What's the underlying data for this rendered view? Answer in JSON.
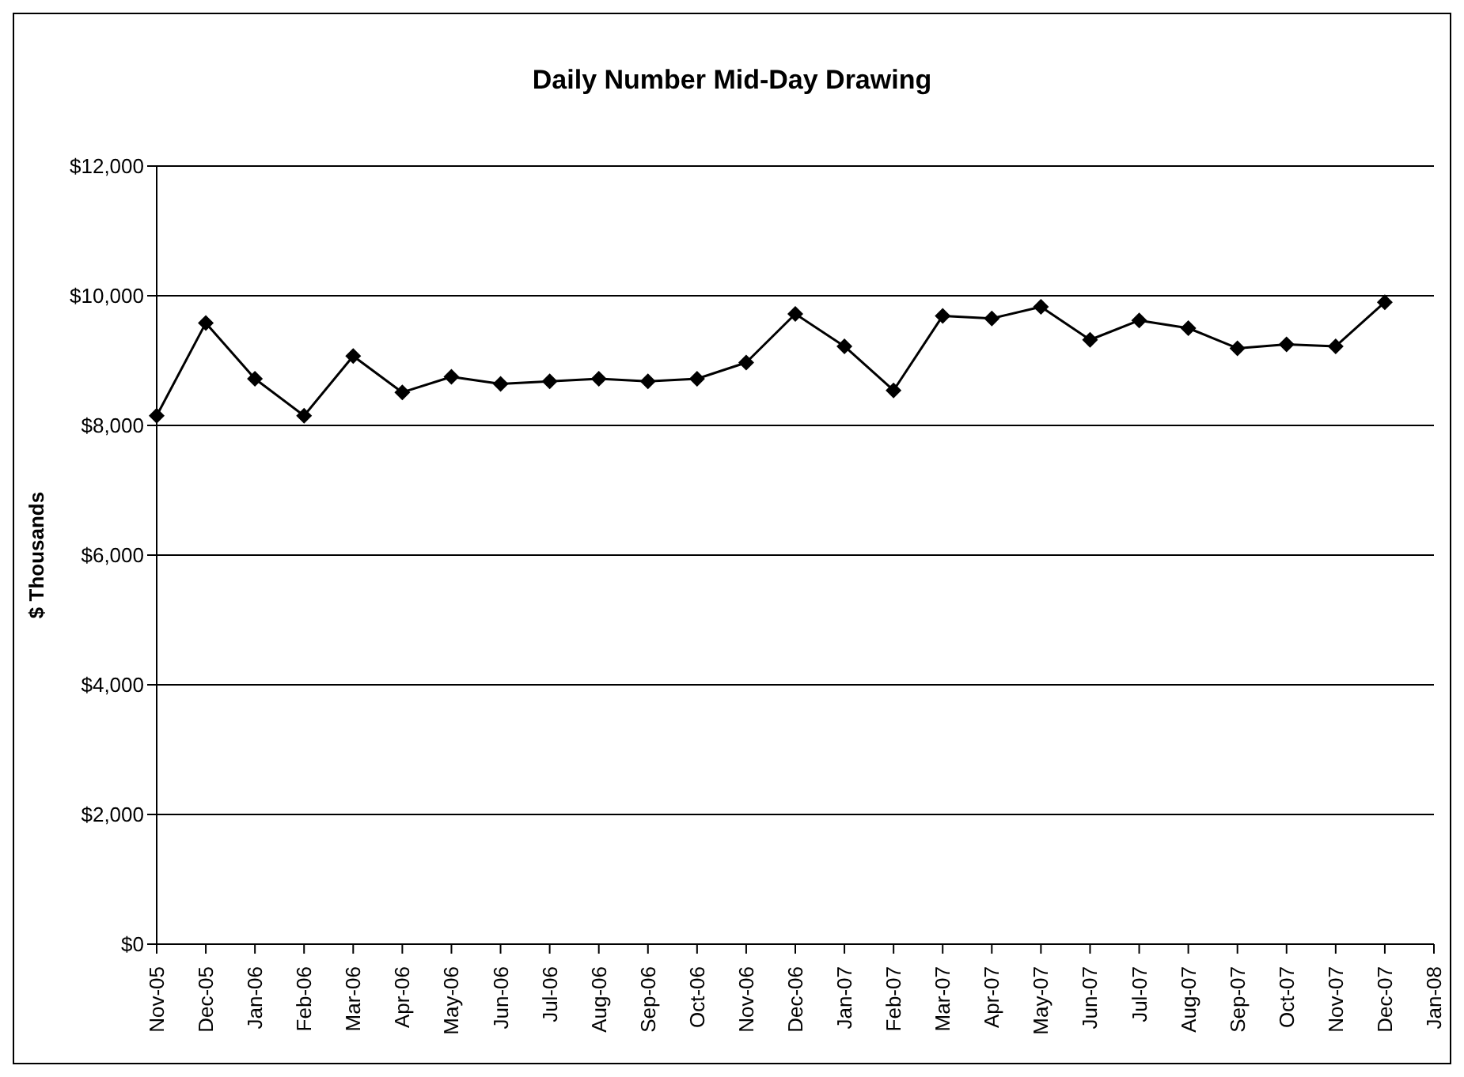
{
  "chart_data": {
    "type": "line",
    "title": "Daily Number Mid-Day Drawing",
    "ylabel": "$ Thousands",
    "categories": [
      "Nov-05",
      "Dec-05",
      "Jan-06",
      "Feb-06",
      "Mar-06",
      "Apr-06",
      "May-06",
      "Jun-06",
      "Jul-06",
      "Aug-06",
      "Sep-06",
      "Oct-06",
      "Nov-06",
      "Dec-06",
      "Jan-07",
      "Feb-07",
      "Mar-07",
      "Apr-07",
      "May-07",
      "Jun-07",
      "Jul-07",
      "Aug-07",
      "Sep-07",
      "Oct-07",
      "Nov-07",
      "Dec-07",
      "Jan-08"
    ],
    "series": [
      {
        "color": "#000000",
        "values": [
          8150,
          9580,
          8720,
          8150,
          9070,
          8510,
          8750,
          8640,
          8680,
          8720,
          8680,
          8720,
          8970,
          9720,
          9220,
          8540,
          9690,
          9650,
          9830,
          9320,
          9620,
          9500,
          9190,
          9250,
          9220,
          9900,
          null
        ]
      }
    ],
    "ylim": [
      0,
      12000
    ],
    "yticks": [
      {
        "value": 0,
        "label": "$0"
      },
      {
        "value": 2000,
        "label": "$2,000"
      },
      {
        "value": 4000,
        "label": "$4,000"
      },
      {
        "value": 6000,
        "label": "$6,000"
      },
      {
        "value": 8000,
        "label": "$8,000"
      },
      {
        "value": 10000,
        "label": "$10,000"
      },
      {
        "value": 12000,
        "label": "$12,000"
      }
    ],
    "grid": "y",
    "legend": false,
    "marker": "diamond",
    "line_style": "solid"
  }
}
